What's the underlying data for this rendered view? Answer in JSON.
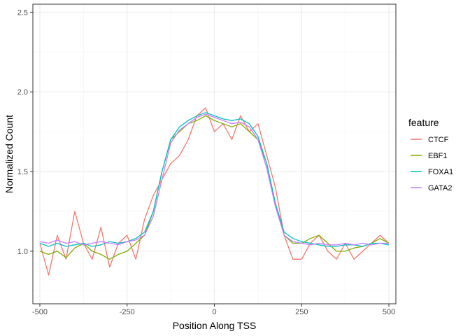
{
  "chart_data": {
    "type": "line",
    "xlabel": "Position Along TSS",
    "ylabel": "Normalized Count",
    "xlim": [
      -520,
      520
    ],
    "ylim": [
      0.67,
      2.55
    ],
    "x_ticks": [
      -500,
      -250,
      0,
      250,
      500
    ],
    "x_tick_labels": [
      "-500",
      "-250",
      "0",
      "250",
      "500"
    ],
    "y_ticks": [
      1.0,
      1.5,
      2.0,
      2.5
    ],
    "y_tick_labels": [
      "1.0",
      "1.5",
      "2.0",
      "2.5"
    ],
    "grid": true,
    "legend": {
      "title": "feature",
      "position": "right"
    },
    "x": [
      -500,
      -475,
      -450,
      -425,
      -400,
      -375,
      -350,
      -325,
      -300,
      -275,
      -250,
      -225,
      -200,
      -175,
      -150,
      -125,
      -100,
      -75,
      -50,
      -25,
      0,
      25,
      50,
      75,
      100,
      125,
      150,
      175,
      200,
      225,
      250,
      275,
      300,
      325,
      350,
      375,
      400,
      425,
      450,
      475,
      500
    ],
    "series": [
      {
        "name": "CTCF",
        "color": "#F8766D",
        "values": [
          1.05,
          0.85,
          1.1,
          0.95,
          1.25,
          1.05,
          0.95,
          1.15,
          0.9,
          1.05,
          1.1,
          0.95,
          1.2,
          1.35,
          1.45,
          1.55,
          1.6,
          1.7,
          1.85,
          1.9,
          1.75,
          1.8,
          1.7,
          1.85,
          1.75,
          1.8,
          1.6,
          1.4,
          1.1,
          0.95,
          0.95,
          1.05,
          1.1,
          1.0,
          0.95,
          1.05,
          0.95,
          1.0,
          1.05,
          1.1,
          1.05
        ]
      },
      {
        "name": "EBF1",
        "color": "#7CAE00",
        "values": [
          1.0,
          0.98,
          1.0,
          0.96,
          1.02,
          1.05,
          1.0,
          0.98,
          0.95,
          0.98,
          1.0,
          1.05,
          1.1,
          1.25,
          1.5,
          1.7,
          1.75,
          1.8,
          1.82,
          1.85,
          1.82,
          1.8,
          1.78,
          1.8,
          1.75,
          1.7,
          1.55,
          1.3,
          1.1,
          1.05,
          1.05,
          1.08,
          1.1,
          1.05,
          1.0,
          1.0,
          1.02,
          1.03,
          1.05,
          1.08,
          1.05
        ]
      },
      {
        "name": "FOXA1",
        "color": "#00BFC4",
        "values": [
          1.05,
          1.03,
          1.05,
          1.03,
          1.04,
          1.05,
          1.03,
          1.04,
          1.06,
          1.05,
          1.06,
          1.08,
          1.12,
          1.25,
          1.5,
          1.7,
          1.78,
          1.82,
          1.85,
          1.87,
          1.85,
          1.83,
          1.82,
          1.83,
          1.8,
          1.72,
          1.55,
          1.3,
          1.12,
          1.08,
          1.06,
          1.05,
          1.04,
          1.03,
          1.03,
          1.04,
          1.04,
          1.03,
          1.05,
          1.05,
          1.04
        ]
      },
      {
        "name": "GATA2",
        "color": "#C77CFF",
        "values": [
          1.06,
          1.05,
          1.07,
          1.05,
          1.06,
          1.04,
          1.05,
          1.06,
          1.05,
          1.04,
          1.06,
          1.07,
          1.1,
          1.22,
          1.45,
          1.68,
          1.76,
          1.8,
          1.84,
          1.86,
          1.84,
          1.82,
          1.8,
          1.81,
          1.78,
          1.7,
          1.52,
          1.28,
          1.1,
          1.06,
          1.05,
          1.04,
          1.05,
          1.04,
          1.04,
          1.05,
          1.04,
          1.05,
          1.04,
          1.05,
          1.05
        ]
      }
    ]
  }
}
